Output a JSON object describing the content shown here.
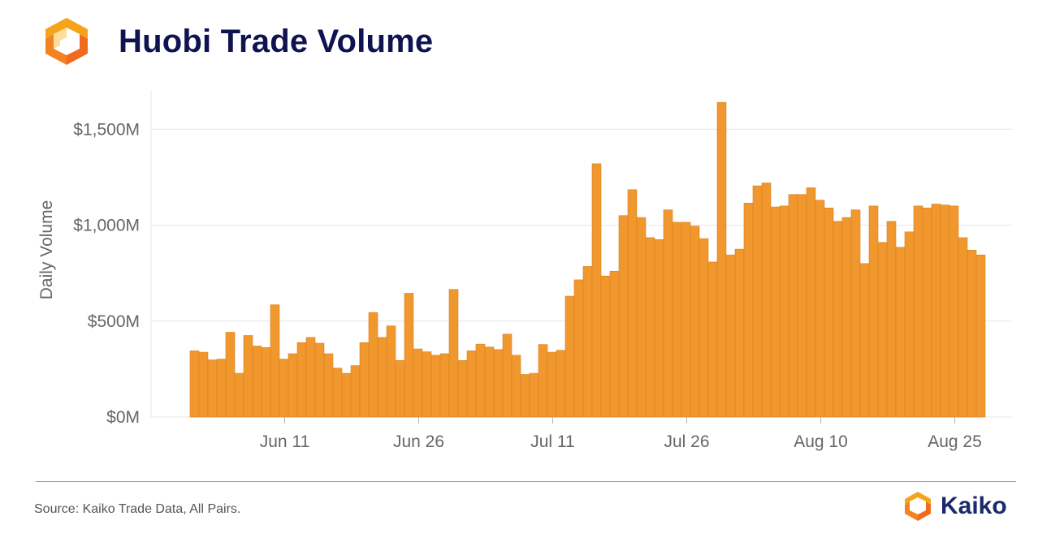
{
  "header": {
    "title": "Huobi Trade Volume",
    "logo_icon": "huobi-orange-bracket-icon"
  },
  "footer": {
    "source": "Source: Kaiko Trade Data, All Pairs.",
    "brand_name": "Kaiko",
    "brand_icon": "kaiko-orange-bracket-icon"
  },
  "colors": {
    "bar": "#f0972e",
    "bar_edge": "#d9801f",
    "title": "#0f1450",
    "brand": "#1a2a6c",
    "grid": "#e6e6e6",
    "axis_text": "#666666"
  },
  "chart_data": {
    "type": "bar",
    "title": "Huobi Trade Volume",
    "ylabel": "Daily Volume",
    "xlabel": "",
    "ylim": [
      0,
      1700
    ],
    "yticks": [
      0,
      500,
      1000,
      1500
    ],
    "ytick_labels": [
      "$0M",
      "$500M",
      "$1,000M",
      "$1,500M"
    ],
    "xtick_labels": [
      "Jun 11",
      "Jun 26",
      "Jul 11",
      "Jul 26",
      "Aug 10",
      "Aug 25"
    ],
    "xtick_indices": [
      10,
      25,
      40,
      55,
      70,
      85
    ],
    "unit": "USD millions",
    "start_date": "Jun 1",
    "values": [
      345,
      338,
      298,
      302,
      442,
      228,
      425,
      370,
      362,
      585,
      302,
      330,
      388,
      415,
      385,
      330,
      255,
      228,
      268,
      388,
      545,
      415,
      475,
      295,
      645,
      355,
      340,
      322,
      330,
      665,
      295,
      345,
      380,
      365,
      352,
      432,
      322,
      222,
      228,
      378,
      338,
      348,
      630,
      715,
      785,
      1320,
      735,
      760,
      1050,
      1185,
      1040,
      935,
      925,
      1080,
      1015,
      1015,
      995,
      930,
      808,
      1640,
      845,
      875,
      1115,
      1205,
      1220,
      1095,
      1100,
      1160,
      1160,
      1195,
      1130,
      1090,
      1020,
      1040,
      1080,
      800,
      1100,
      910,
      1020,
      885,
      965,
      1100,
      1090,
      1110,
      1105,
      1100,
      935,
      870,
      845
    ]
  }
}
